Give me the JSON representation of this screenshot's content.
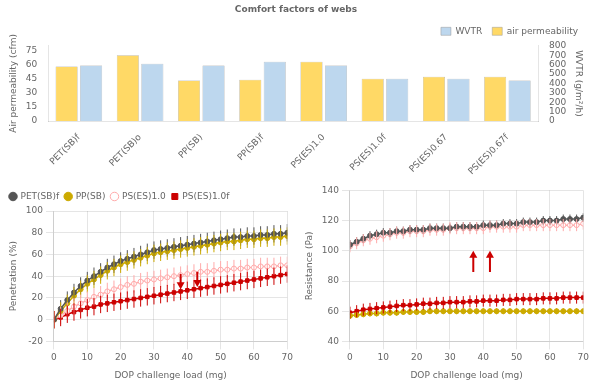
{
  "chart_data": [
    {
      "type": "bar",
      "title": "Comfort factors of webs",
      "categories": [
        "PET(SB)f",
        "PET(SB)o",
        "PP(SB)",
        "PP(SB)f",
        "PS(ES)1.0",
        "PS(ES)1.0f",
        "PS(ES)0.67",
        "PS(ES)0.67f"
      ],
      "series": [
        {
          "name": "air permeability",
          "color": "#FFD966",
          "values": [
            58,
            70,
            43,
            44,
            63,
            45,
            47,
            47
          ]
        },
        {
          "name": "WVTR",
          "color": "#BDD7EE",
          "values": [
            590,
            610,
            590,
            630,
            590,
            450,
            450,
            430
          ],
          "axis": "y2"
        }
      ],
      "ylabel": "Air permeability (cfm)",
      "y2label": "WVTR (g/m²/h)",
      "ylim": [
        0,
        80
      ],
      "yticks": [
        0,
        15,
        30,
        45,
        60,
        75
      ],
      "y2lim": [
        0,
        800
      ],
      "y2ticks": [
        0,
        100,
        200,
        300,
        400,
        500,
        600,
        700,
        800
      ],
      "legend": "upper right",
      "grid": false
    },
    {
      "type": "line",
      "xlabel": "DOP challenge load (mg)",
      "ylabel": "Penetration (%)",
      "x": [
        0,
        2,
        4,
        6,
        8,
        10,
        12,
        14,
        16,
        18,
        20,
        22,
        24,
        26,
        28,
        30,
        32,
        34,
        36,
        38,
        40,
        42,
        44,
        46,
        48,
        50,
        52,
        54,
        56,
        58,
        60,
        62,
        64,
        66,
        68,
        70
      ],
      "series": [
        {
          "name": "PET(SB)f",
          "color": "#555555",
          "marker": "circle",
          "error": 8,
          "values": [
            0,
            10,
            18,
            25,
            31,
            36,
            40,
            44,
            48,
            51,
            54,
            56,
            58,
            60,
            62,
            64,
            65,
            66,
            67,
            68,
            69,
            70,
            71,
            72,
            73,
            74,
            75,
            76,
            76,
            77,
            77,
            78,
            78,
            79,
            79,
            80
          ]
        },
        {
          "name": "PP(SB)",
          "color": "#CCAA00",
          "marker": "circle",
          "error": 8,
          "values": [
            0,
            8,
            15,
            22,
            28,
            33,
            37,
            41,
            45,
            48,
            51,
            53,
            55,
            57,
            59,
            61,
            62,
            63,
            64,
            65,
            66,
            67,
            68,
            69,
            70,
            71,
            72,
            72,
            73,
            74,
            74,
            75,
            75,
            76,
            76,
            77
          ]
        },
        {
          "name": "PS(ES)1.0",
          "color": "#FFAAAA",
          "marker": "hollow",
          "error": 8,
          "values": [
            0,
            4,
            8,
            12,
            15,
            18,
            21,
            23,
            26,
            28,
            30,
            32,
            33,
            35,
            36,
            37,
            38,
            39,
            40,
            41,
            42,
            43,
            44,
            44,
            45,
            46,
            46,
            47,
            47,
            48,
            48,
            49,
            49,
            49,
            50,
            50
          ]
        },
        {
          "name": "PS(ES)1.0f",
          "color": "#CC0000",
          "marker": "square",
          "error": 8,
          "values": [
            0,
            2,
            5,
            7,
            9,
            11,
            12,
            14,
            15,
            16,
            17,
            18,
            19,
            20,
            21,
            22,
            23,
            24,
            25,
            26,
            27,
            28,
            29,
            30,
            31,
            32,
            33,
            34,
            35,
            36,
            37,
            38,
            39,
            40,
            41,
            42
          ]
        }
      ],
      "xlim": [
        0,
        70
      ],
      "xticks": [
        0,
        10,
        20,
        30,
        40,
        50,
        60,
        70
      ],
      "ylim": [
        -20,
        100
      ],
      "yticks": [
        -20,
        0,
        20,
        40,
        60,
        80,
        100
      ],
      "grid": true,
      "legend": "upper left",
      "arrows": [
        {
          "x": 38,
          "from": 42,
          "to": 28,
          "color": "#CC0000"
        },
        {
          "x": 43,
          "from": 44,
          "to": 30,
          "color": "#CC0000"
        }
      ]
    },
    {
      "type": "line",
      "xlabel": "DOP challenge load (mg)",
      "ylabel": "Resistance (Pa)",
      "x": [
        0,
        2,
        4,
        6,
        8,
        10,
        12,
        14,
        16,
        18,
        20,
        22,
        24,
        26,
        28,
        30,
        32,
        34,
        36,
        38,
        40,
        42,
        44,
        46,
        48,
        50,
        52,
        54,
        56,
        58,
        60,
        62,
        64,
        66,
        68,
        70
      ],
      "series": [
        {
          "color": "#555555",
          "marker": "circle",
          "error": 3,
          "values": [
            104,
            106,
            108,
            110,
            111,
            112,
            112,
            113,
            113,
            114,
            114,
            114,
            115,
            115,
            115,
            115,
            116,
            116,
            116,
            116,
            117,
            117,
            117,
            118,
            118,
            118,
            119,
            119,
            119,
            120,
            120,
            120,
            121,
            121,
            121,
            122
          ]
        },
        {
          "color": "#CCAA00",
          "marker": "circle",
          "error": 2,
          "values": [
            57,
            57.5,
            58,
            58.5,
            58.5,
            59,
            59,
            59,
            59.5,
            59.5,
            59.5,
            59.5,
            60,
            60,
            60,
            60,
            60,
            60,
            60,
            60,
            60,
            60,
            60,
            60,
            60,
            60,
            60,
            60,
            60,
            60,
            60,
            60,
            60,
            60,
            60,
            60
          ]
        },
        {
          "color": "#FFAAAA",
          "marker": "hollow",
          "error": 4,
          "values": [
            103,
            105,
            107,
            108,
            109,
            110,
            111,
            112,
            112,
            113,
            113,
            113,
            114,
            114,
            114,
            115,
            115,
            115,
            115,
            115,
            115,
            116,
            116,
            116,
            116,
            116,
            117,
            117,
            117,
            117,
            117,
            117,
            117,
            117,
            117,
            118
          ]
        },
        {
          "color": "#CC0000",
          "marker": "square",
          "error": 4,
          "values": [
            59,
            60,
            61,
            61.5,
            62,
            62.5,
            63,
            63.5,
            64,
            64,
            64.5,
            65,
            65,
            65.5,
            65.5,
            66,
            66,
            66,
            66.5,
            66.5,
            67,
            67,
            67,
            67.5,
            67.5,
            68,
            68,
            68,
            68,
            68.5,
            68.5,
            68.5,
            69,
            69,
            69,
            69
          ]
        }
      ],
      "xlim": [
        0,
        70
      ],
      "xticks": [
        0,
        10,
        20,
        30,
        40,
        50,
        60,
        70
      ],
      "ylim": [
        40,
        140
      ],
      "yticks": [
        40,
        60,
        80,
        100,
        120,
        140
      ],
      "grid": true,
      "arrows": [
        {
          "x": 37,
          "from": 86,
          "to": 100,
          "color": "#CC0000"
        },
        {
          "x": 42,
          "from": 86,
          "to": 100,
          "color": "#CC0000"
        }
      ]
    }
  ]
}
